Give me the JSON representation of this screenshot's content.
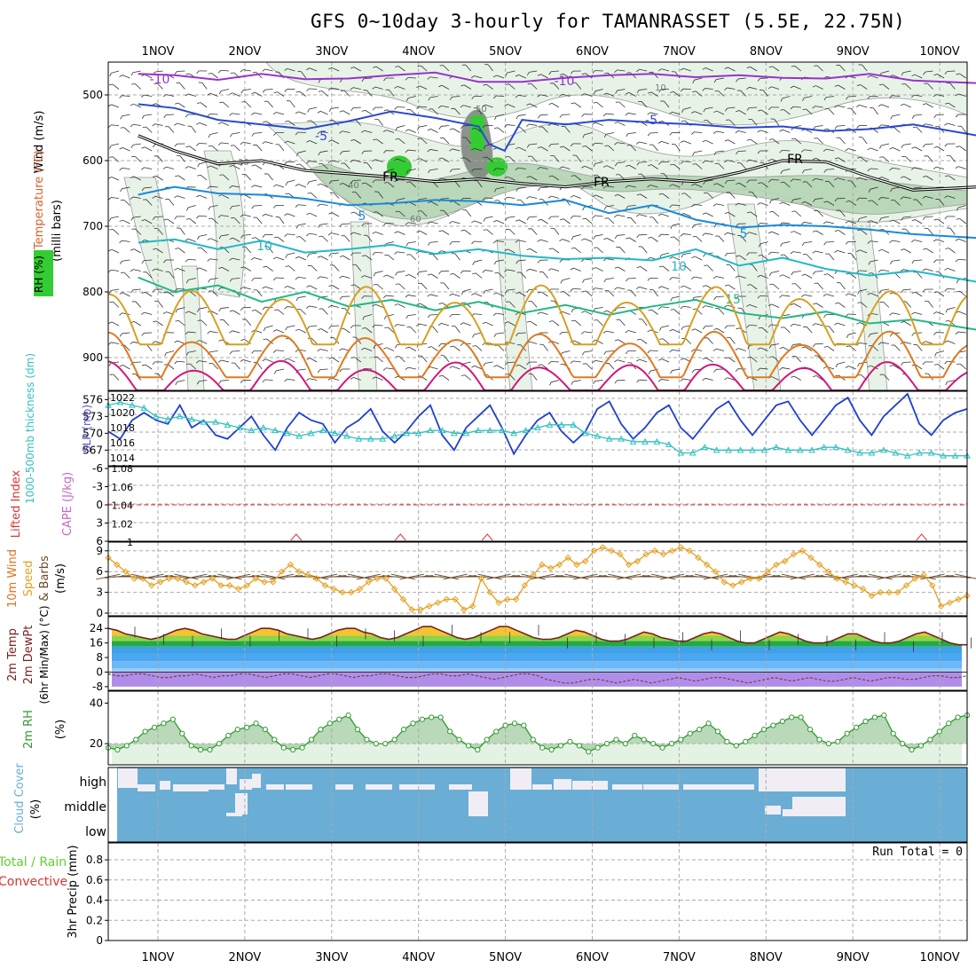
{
  "title": "GFS 0~10day 3-hourly for TAMANRASSET (5.5E, 22.75N)",
  "colors": {
    "rh_light": "#e6f2e6",
    "rh_mid": "#b4d4b4",
    "rh_dark": "#808880",
    "rh_green": "#33cc33",
    "slp": "#1f3fd0",
    "thickness": "#33c0c0",
    "cape": "#cc66cc",
    "lifted": "#dd3333",
    "wind_speed": "#e6a020",
    "barb": "#6a4a2a",
    "temp_line": "#7a2020",
    "rh2m": "#339933",
    "cloud": "#6aaed6",
    "cloud_clear": "#f0eef4",
    "precip_total": "#66cc33",
    "precip_conv": "#dd3333"
  },
  "chart_data": [
    {
      "type": "line",
      "name": "upper-air",
      "title": "",
      "xlabel": "",
      "ylabel": "(milli bars)",
      "axis_labels": [
        "RH (%)",
        "Temperature (°C)",
        "Wind (m/s)"
      ],
      "categories": [
        "1NOV",
        "2NOV",
        "3NOV",
        "4NOV",
        "5NOV",
        "6NOV",
        "7NOV",
        "8NOV",
        "9NOV",
        "10NOV"
      ],
      "yticks": [
        500,
        600,
        700,
        800,
        900
      ],
      "ylim": [
        950,
        450
      ],
      "y_scale": "pressure",
      "grid": true,
      "isotherm_labels": [
        "-10",
        "-5",
        "5",
        "10",
        "15",
        "FR"
      ],
      "isotherms": [
        {
          "label": "-10",
          "color": "#9933cc",
          "x": [
            0.58,
            1.0,
            1.5,
            2.0,
            2.5,
            3.0,
            3.5,
            4.0,
            4.5,
            5.0,
            5.5,
            6.0,
            6.5,
            7.0,
            7.5,
            8.0,
            8.5,
            9.0,
            9.5,
            10.25
          ],
          "y": [
            468,
            470,
            477,
            468,
            476,
            475,
            470,
            466,
            480,
            480,
            474,
            470,
            468,
            473,
            470,
            474,
            475,
            468,
            478,
            482
          ]
        },
        {
          "label": "-5",
          "color": "#2a4ad0",
          "x": [
            0.58,
            1.0,
            1.5,
            2.0,
            2.5,
            3.0,
            3.5,
            4.0,
            4.5,
            4.62,
            4.8,
            5.0,
            5.5,
            6.0,
            6.5,
            7.0,
            7.5,
            8.0,
            8.5,
            9.0,
            9.5,
            10.25
          ],
          "y": [
            514,
            520,
            538,
            545,
            552,
            540,
            525,
            535,
            548,
            575,
            585,
            538,
            545,
            538,
            542,
            545,
            550,
            548,
            555,
            552,
            545,
            562
          ]
        },
        {
          "label": "FR",
          "color": "#000000",
          "x": [
            0.58,
            1.0,
            1.5,
            2.0,
            2.5,
            3.0,
            3.5,
            4.0,
            4.5,
            5.0,
            5.5,
            6.0,
            6.5,
            7.0,
            7.5,
            8.0,
            8.5,
            9.0,
            9.5,
            10.25
          ],
          "y": [
            562,
            585,
            605,
            600,
            615,
            620,
            625,
            632,
            628,
            635,
            640,
            632,
            628,
            632,
            618,
            600,
            602,
            625,
            645,
            640
          ]
        },
        {
          "label": "5",
          "color": "#1a8ad8",
          "x": [
            0.58,
            1.0,
            1.5,
            2.0,
            2.5,
            3.0,
            3.5,
            4.0,
            4.5,
            5.0,
            5.5,
            6.0,
            6.5,
            7.0,
            7.5,
            8.0,
            8.5,
            9.0,
            9.5,
            10.25
          ],
          "y": [
            652,
            640,
            650,
            652,
            658,
            668,
            665,
            660,
            662,
            668,
            660,
            680,
            668,
            690,
            702,
            698,
            700,
            705,
            712,
            718
          ]
        },
        {
          "label": "10",
          "color": "#22b8c8",
          "x": [
            0.58,
            1.0,
            1.5,
            2.0,
            2.5,
            3.0,
            3.5,
            4.0,
            4.5,
            5.0,
            5.5,
            6.0,
            6.5,
            7.0,
            7.5,
            8.0,
            8.5,
            9.0,
            9.5,
            10.25
          ],
          "y": [
            725,
            720,
            735,
            722,
            740,
            735,
            728,
            742,
            735,
            745,
            750,
            748,
            752,
            735,
            760,
            748,
            765,
            775,
            768,
            785
          ]
        },
        {
          "label": "15",
          "color": "#22b888",
          "x": [
            0.58,
            1.0,
            1.5,
            2.0,
            2.5,
            3.0,
            3.5,
            4.0,
            4.5,
            5.0,
            5.5,
            6.0,
            6.5,
            7.0,
            7.5,
            8.0,
            8.5,
            9.0,
            9.5,
            10.25
          ],
          "y": [
            778,
            800,
            790,
            815,
            800,
            822,
            812,
            828,
            815,
            832,
            820,
            835,
            822,
            812,
            832,
            840,
            830,
            848,
            842,
            858
          ]
        }
      ],
      "diurnal_lines": [
        {
          "color": "#d8a020",
          "base": 880,
          "peak": 790
        },
        {
          "color": "#e07a20",
          "base": 930,
          "peak": 860
        },
        {
          "color": "#d01878",
          "base": 955,
          "peak": 905
        }
      ],
      "rh_contour_labels": [
        "30",
        "50",
        "60",
        "40",
        "10"
      ]
    },
    {
      "type": "line",
      "name": "slp-thickness",
      "axis_labels": [
        "1000-500mb thickness (dm)",
        "SLP (mb)"
      ],
      "left_ticks": [
        "576",
        "573",
        "570",
        "567"
      ],
      "right_ticks": [
        "1022",
        "1020",
        "1018",
        "1016",
        "1014"
      ],
      "left_ylim": [
        565,
        577
      ],
      "right_ylim": [
        1013.5,
        1022.5
      ],
      "series": [
        {
          "name": "SLP (mb)",
          "axis": "right",
          "values": [
            1017.5,
            1016.5,
            1019,
            1020,
            1019,
            1018.5,
            1021,
            1018,
            1019,
            1017,
            1016.5,
            1018,
            1019.5,
            1017,
            1015,
            1018,
            1020,
            1019,
            1018.5,
            1016,
            1018,
            1019,
            1020.5,
            1017.5,
            1016,
            1017.5,
            1019.5,
            1021,
            1017,
            1015,
            1018,
            1019.5,
            1021,
            1018,
            1014.5,
            1017,
            1019,
            1020,
            1017.5,
            1016,
            1017.5,
            1020.5,
            1021.5,
            1018.5,
            1016.5,
            1018,
            1020,
            1021,
            1018,
            1016.5,
            1018.5,
            1020.5,
            1021.5,
            1019,
            1017,
            1019,
            1021,
            1021.5,
            1019,
            1017,
            1019,
            1021,
            1022,
            1019,
            1017,
            1019.5,
            1021,
            1022.5,
            1018.5,
            1017,
            1019,
            1020,
            1020.5
          ]
        },
        {
          "name": "1000-500mb thickness (dm)",
          "axis": "left",
          "values": [
            575,
            575.5,
            575,
            574.5,
            573,
            572.5,
            573,
            572.5,
            572,
            572,
            571.5,
            571,
            570.5,
            571,
            570.5,
            570,
            569.5,
            570,
            570.5,
            570,
            569.5,
            569,
            569,
            569,
            569.5,
            570,
            570,
            570.5,
            570.5,
            570,
            570,
            570.5,
            570.5,
            570.5,
            570,
            570.5,
            571,
            571.5,
            571.5,
            571.5,
            570,
            569.5,
            569,
            569,
            568.5,
            568.5,
            568.5,
            568,
            566.5,
            566.5,
            567.5,
            567,
            567,
            567,
            567,
            567,
            567.5,
            567,
            567,
            567,
            567.5,
            567.5,
            567,
            566.5,
            566.5,
            567,
            566.5,
            566,
            566.5,
            566.5,
            566,
            566,
            566
          ]
        }
      ]
    },
    {
      "type": "line",
      "name": "cape-lifted",
      "axis_labels": [
        "Lifted Index",
        "CAPE (J/kg)"
      ],
      "left_ticks": [
        "-6",
        "-3",
        "0",
        "3",
        "6"
      ],
      "right_ticks": [
        "1.08",
        "1.06",
        "1.04",
        "1.02",
        "1"
      ],
      "left_ylim": [
        -6,
        6
      ],
      "right_ylim": [
        1,
        1.08
      ],
      "zero_line": 0,
      "marks": [
        {
          "x": 2.4,
          "y": 1.002
        },
        {
          "x": 3.6,
          "y": 1.001
        },
        {
          "x": 4.6,
          "y": 1.001
        },
        {
          "x": 9.6,
          "y": 1.0005
        }
      ]
    },
    {
      "type": "line",
      "name": "10m-wind",
      "axis_labels": [
        "10m Wind Speed & Barbs (m/s)"
      ],
      "yticks": [
        0,
        3,
        6,
        9
      ],
      "ylim": [
        0,
        10
      ],
      "series": [
        {
          "name": "Speed",
          "values": [
            8,
            7,
            6,
            5,
            5,
            4,
            4.5,
            5,
            5,
            4.5,
            4,
            4.5,
            5,
            4,
            4,
            3.5,
            4,
            5,
            4.5,
            4.5,
            6,
            7,
            6,
            5.5,
            5,
            4,
            3.5,
            3,
            3,
            3.5,
            4.5,
            5,
            5,
            3.5,
            2,
            0.5,
            0.5,
            1,
            1.5,
            2,
            2,
            0.5,
            1,
            5,
            3,
            1.5,
            2,
            2,
            4,
            5.5,
            7,
            6.5,
            7,
            8,
            7,
            7.5,
            9,
            9.5,
            9,
            8.5,
            7,
            7.5,
            8.5,
            9,
            8.5,
            9,
            9.5,
            9,
            8,
            7,
            6,
            4.5,
            4,
            4.5,
            5,
            5,
            6,
            7,
            7.5,
            8.5,
            9,
            8,
            7,
            6,
            5,
            4.5,
            4,
            3.5,
            2.5,
            3,
            3,
            3,
            4,
            5,
            5.5,
            4,
            1,
            1.5,
            2,
            2.5
          ]
        }
      ]
    },
    {
      "type": "area",
      "name": "2m-temp",
      "axis_labels": [
        "2m Temp",
        "2m DewPt",
        "(6hr Min/Max) (°C)"
      ],
      "yticks": [
        24,
        16,
        8,
        0,
        -8
      ],
      "ylim": [
        -10,
        28
      ],
      "series": [
        {
          "name": "Temp",
          "values": [
            24,
            23,
            21,
            20,
            19,
            18,
            19,
            21,
            23,
            24,
            23,
            21,
            20,
            19,
            18,
            18,
            20,
            22,
            24,
            24,
            23,
            21,
            20,
            19,
            18,
            19,
            21,
            23,
            24,
            24,
            22,
            21,
            19,
            18,
            19,
            21,
            23,
            25,
            25,
            23,
            21,
            19,
            18,
            19,
            21,
            23,
            25,
            25,
            23,
            21,
            19,
            18,
            18,
            19,
            21,
            23,
            22,
            20,
            18,
            17,
            17,
            18,
            20,
            22,
            21,
            19,
            18,
            17,
            17,
            19,
            21,
            22,
            21,
            19,
            17,
            16,
            16,
            18,
            20,
            22,
            21,
            19,
            17,
            16,
            16,
            17,
            19,
            21,
            21,
            19,
            17,
            16,
            16,
            17,
            19,
            21,
            22,
            20,
            18,
            16,
            15,
            15
          ]
        },
        {
          "name": "DewPt",
          "values": [
            -1,
            -2,
            -2,
            -1,
            -1,
            -2,
            -3,
            -3,
            -2,
            -2,
            -1,
            -2,
            -3,
            -2,
            -2,
            -1,
            -1,
            -2,
            -3,
            -2,
            -1,
            -1,
            -2,
            -3,
            -2,
            -1,
            -1,
            -2,
            -3,
            -2,
            -2,
            -1,
            -1,
            -2,
            -3,
            -3,
            -2,
            -1,
            -1,
            -2,
            -2,
            -1,
            -2,
            -3,
            -4,
            -3,
            -2,
            -1,
            -1,
            -2,
            -4,
            -5,
            -6,
            -6,
            -5,
            -4,
            -4,
            -5,
            -6,
            -5,
            -4,
            -5,
            -6,
            -5,
            -4,
            -3,
            -4,
            -5,
            -4,
            -3,
            -3,
            -4,
            -5,
            -6,
            -5,
            -4,
            -3,
            -4,
            -5,
            -4,
            -3,
            -4,
            -5,
            -5,
            -4,
            -3,
            -4,
            -5,
            -4,
            -3,
            -3,
            -4,
            -4,
            -3,
            -2,
            -2,
            -3,
            -3,
            -2
          ]
        }
      ]
    },
    {
      "type": "area",
      "name": "2m-rh",
      "axis_labels": [
        "2m RH",
        "(%)"
      ],
      "yticks": [
        20,
        40
      ],
      "ylim": [
        10,
        45
      ],
      "series": [
        {
          "name": "RH",
          "values": [
            18,
            17,
            19,
            22,
            26,
            28,
            30,
            32,
            25,
            19,
            17,
            17,
            20,
            24,
            27,
            28,
            30,
            27,
            22,
            18,
            17,
            18,
            22,
            27,
            30,
            32,
            34,
            27,
            22,
            20,
            20,
            22,
            27,
            30,
            32,
            33,
            33,
            26,
            22,
            19,
            17,
            22,
            26,
            29,
            30,
            29,
            22,
            18,
            17,
            19,
            21,
            19,
            16,
            18,
            20,
            22,
            20,
            24,
            22,
            20,
            18,
            20,
            22,
            25,
            27,
            30,
            26,
            21,
            19,
            21,
            24,
            27,
            29,
            31,
            33,
            33,
            27,
            22,
            20,
            21,
            25,
            28,
            31,
            33,
            34,
            25,
            20,
            17,
            19,
            22,
            26,
            30,
            33,
            34
          ]
        }
      ]
    },
    {
      "type": "area",
      "name": "cloud-cover",
      "axis_labels": [
        "Cloud Cover",
        "(%)"
      ],
      "yticks": [
        "high",
        "middle",
        "low"
      ],
      "ylim": [
        0,
        100
      ]
    },
    {
      "type": "bar",
      "name": "precip",
      "axis_labels": [
        "Total / Rain",
        "Convective",
        "3hr Precip (mm)"
      ],
      "yticks": [
        0,
        0.2,
        0.4,
        0.6,
        0.8
      ],
      "ylim": [
        0,
        0.95
      ],
      "values": [],
      "annotation": "Run Total = 0"
    }
  ]
}
